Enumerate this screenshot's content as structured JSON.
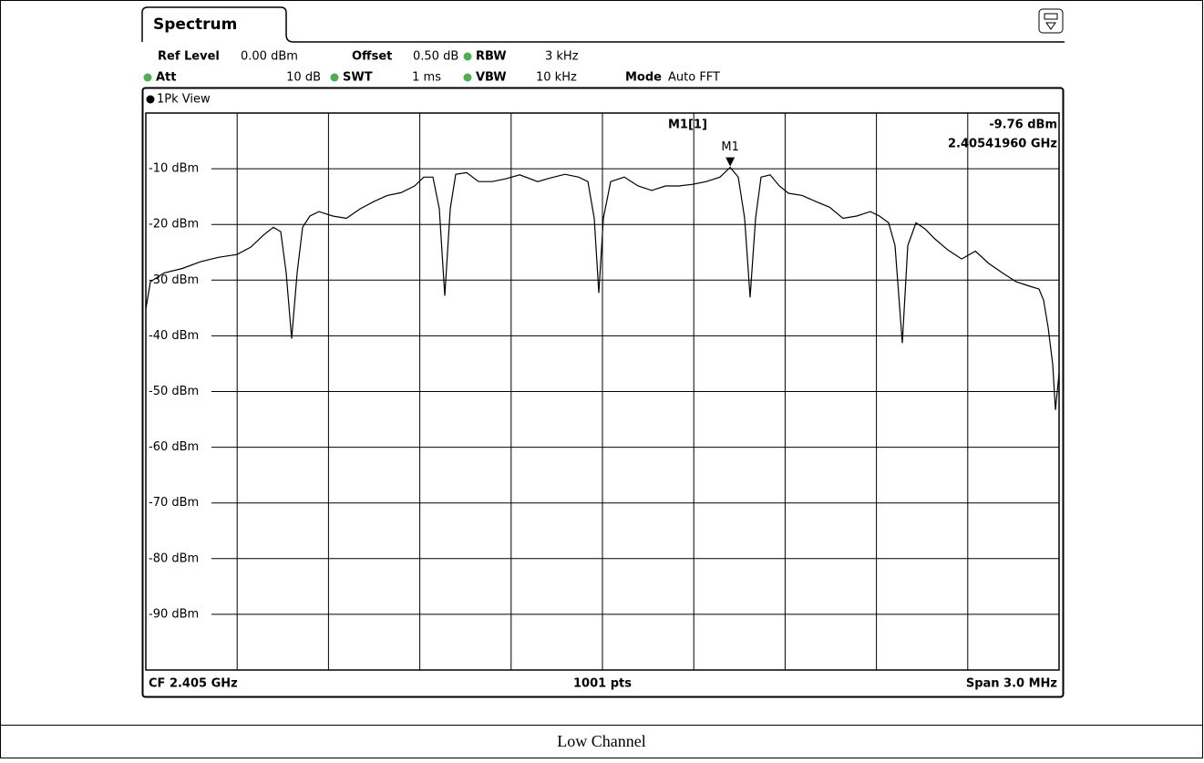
{
  "header": {
    "tab": "Spectrum",
    "ref_level_label": "Ref Level",
    "ref_level": "0.00 dBm",
    "offset_label": "Offset",
    "offset": "0.50 dB",
    "rbw_label": "RBW",
    "rbw": "3 kHz",
    "att_label": "Att",
    "att": "10 dB",
    "swt_label": "SWT",
    "swt": "1 ms",
    "vbw_label": "VBW",
    "vbw": "10 kHz",
    "mode_label": "Mode",
    "mode": "Auto FFT"
  },
  "caption": "Low Channel",
  "chart_data": {
    "type": "line",
    "title": "1Pk View",
    "color": "#000000",
    "x": [
      2.4035,
      2.403515,
      2.40356,
      2.40362,
      2.40368,
      2.40374,
      2.403799,
      2.403844,
      2.403889,
      2.403919,
      2.403943,
      2.403961,
      2.403979,
      2.403997,
      2.404015,
      2.404039,
      2.404069,
      2.404114,
      2.404159,
      2.404204,
      2.404249,
      2.404293,
      2.404338,
      2.404383,
      2.404413,
      2.404443,
      2.404464,
      2.404482,
      2.4045,
      2.404518,
      2.404554,
      2.404593,
      2.404638,
      2.404683,
      2.404728,
      2.404787,
      2.404832,
      2.404877,
      2.404922,
      2.404952,
      2.404973,
      2.404988,
      2.405003,
      2.405027,
      2.405072,
      2.405117,
      2.405162,
      2.405207,
      2.405251,
      2.405296,
      2.405341,
      2.405386,
      2.4054196,
      2.405446,
      2.405467,
      2.405485,
      2.405503,
      2.405521,
      2.405551,
      2.405581,
      2.405611,
      2.405656,
      2.405701,
      2.405746,
      2.40579,
      2.405835,
      2.40588,
      2.40591,
      2.40594,
      2.405961,
      2.405985,
      2.406003,
      2.40603,
      2.40606,
      2.40609,
      2.406135,
      2.40618,
      2.406225,
      2.406269,
      2.406314,
      2.406359,
      2.406404,
      2.406434,
      2.406449,
      2.406464,
      2.406479,
      2.406488,
      2.4065
    ],
    "values": [
      -35.2,
      -30.3,
      -28.7,
      -27.9,
      -26.7,
      -25.9,
      -25.4,
      -24.1,
      -21.8,
      -20.5,
      -21.3,
      -28.7,
      -40.5,
      -28.7,
      -20.5,
      -18.5,
      -17.7,
      -18.5,
      -18.9,
      -17.2,
      -15.9,
      -14.8,
      -14.3,
      -13.1,
      -11.5,
      -11.5,
      -17.2,
      -32.8,
      -17.2,
      -11.0,
      -10.7,
      -12.3,
      -12.3,
      -11.8,
      -11.1,
      -12.3,
      -11.6,
      -11.0,
      -11.5,
      -12.3,
      -18.9,
      -32.3,
      -18.9,
      -12.3,
      -11.5,
      -13.1,
      -13.9,
      -13.1,
      -13.1,
      -12.8,
      -12.3,
      -11.5,
      -9.76,
      -11.5,
      -18.9,
      -33.1,
      -18.9,
      -11.5,
      -11.1,
      -13.1,
      -14.4,
      -14.8,
      -15.9,
      -16.9,
      -18.9,
      -18.5,
      -17.7,
      -18.5,
      -19.7,
      -23.8,
      -41.3,
      -23.8,
      -19.7,
      -20.8,
      -22.5,
      -24.6,
      -26.2,
      -24.8,
      -27.0,
      -28.7,
      -30.3,
      -31.1,
      -31.6,
      -33.6,
      -38.5,
      -45.1,
      -53.3,
      -46.7
    ],
    "xlim": [
      2.4035,
      2.4065
    ],
    "ylim": [
      -100,
      0
    ],
    "yticks": [
      {
        "value": -10,
        "label": "-10 dBm"
      },
      {
        "value": -20,
        "label": "-20 dBm"
      },
      {
        "value": -30,
        "label": "-30 dBm"
      },
      {
        "value": -40,
        "label": "-40 dBm"
      },
      {
        "value": -50,
        "label": "-50 dBm"
      },
      {
        "value": -60,
        "label": "-60 dBm"
      },
      {
        "value": -70,
        "label": "-70 dBm"
      },
      {
        "value": -80,
        "label": "-80 dBm"
      },
      {
        "value": -90,
        "label": "-90 dBm"
      }
    ],
    "grid": true,
    "marker": {
      "name": "M1",
      "title": "M1[1]",
      "x": 2.4054196,
      "x_label": "2.40541960 GHz",
      "y": -9.76,
      "y_label": "-9.76 dBm"
    },
    "footer_left": "CF 2.405 GHz",
    "footer_center": "1001 pts",
    "footer_right": "Span 3.0 MHz"
  }
}
